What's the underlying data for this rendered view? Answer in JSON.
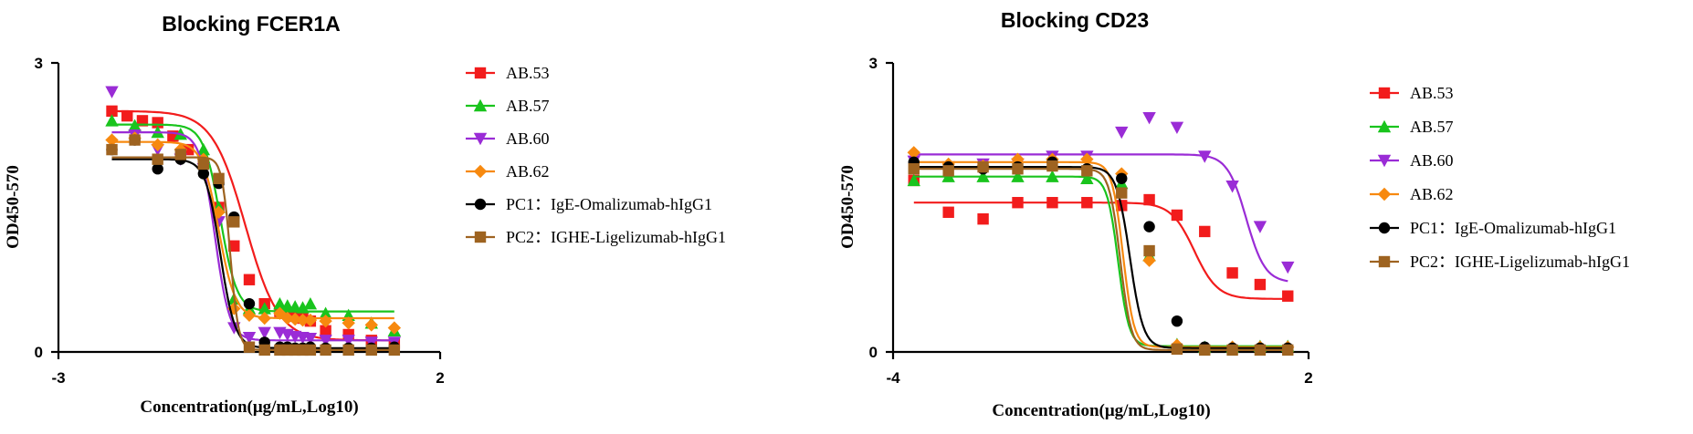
{
  "chart_data": [
    {
      "type": "scatter",
      "title": "Blocking FCER1A",
      "xlabel": "Concentration(μg/mL,Log10)",
      "ylabel": "OD450-570",
      "xlim": [
        -3,
        2
      ],
      "ylim": [
        0,
        3
      ],
      "xticks": [
        "-3",
        "2"
      ],
      "yticks": [
        "0",
        "3"
      ],
      "legend_position": "right",
      "series": [
        {
          "name": "AB.53",
          "color": "#f21c1c",
          "marker": "square",
          "x": [
            -2.3,
            -2.1,
            -1.9,
            -1.7,
            -1.5,
            -1.3,
            -1.1,
            -0.9,
            -0.7,
            -0.5,
            -0.3,
            -0.1,
            0.0,
            0.1,
            0.2,
            0.3,
            0.5,
            0.8,
            1.1,
            1.4
          ],
          "y": [
            2.5,
            2.45,
            2.4,
            2.38,
            2.24,
            2.1,
            1.95,
            1.5,
            1.1,
            0.75,
            0.5,
            0.42,
            0.4,
            0.37,
            0.35,
            0.32,
            0.22,
            0.18,
            0.12,
            0.09
          ],
          "fit": [
            2.5,
            0.12,
            -0.55,
            -2.0
          ]
        },
        {
          "name": "AB.57",
          "color": "#19c41d",
          "marker": "triangle",
          "x": [
            -2.3,
            -2.0,
            -1.7,
            -1.4,
            -1.1,
            -0.9,
            -0.7,
            -0.5,
            -0.3,
            -0.1,
            0.0,
            0.1,
            0.2,
            0.3,
            0.5,
            0.8,
            1.1,
            1.4
          ],
          "y": [
            2.4,
            2.35,
            2.28,
            2.26,
            2.1,
            1.5,
            0.55,
            0.45,
            0.45,
            0.5,
            0.48,
            0.47,
            0.46,
            0.5,
            0.4,
            0.38,
            0.3,
            0.22
          ],
          "fit": [
            2.36,
            0.42,
            -0.88,
            -4.0
          ]
        },
        {
          "name": "AB.60",
          "color": "#9a2cd6",
          "marker": "triangle-down",
          "x": [
            -2.3,
            -2.0,
            -1.7,
            -1.4,
            -1.1,
            -0.9,
            -0.7,
            -0.5,
            -0.3,
            -0.1,
            0.0,
            0.1,
            0.2,
            0.3,
            0.5,
            0.8,
            1.1,
            1.4
          ],
          "y": [
            2.7,
            2.25,
            2.1,
            2.0,
            1.9,
            1.35,
            0.25,
            0.15,
            0.2,
            0.2,
            0.18,
            0.16,
            0.15,
            0.14,
            0.12,
            0.12,
            0.1,
            0.1
          ],
          "fit": [
            2.28,
            0.12,
            -0.95,
            -4.5
          ]
        },
        {
          "name": "AB.62",
          "color": "#f7890f",
          "marker": "diamond",
          "x": [
            -2.3,
            -2.0,
            -1.7,
            -1.4,
            -1.1,
            -0.9,
            -0.7,
            -0.5,
            -0.3,
            -0.1,
            0.0,
            0.1,
            0.2,
            0.3,
            0.5,
            0.8,
            1.1,
            1.4
          ],
          "y": [
            2.2,
            2.22,
            2.15,
            2.1,
            2.0,
            1.45,
            0.45,
            0.38,
            0.35,
            0.4,
            0.35,
            0.34,
            0.33,
            0.33,
            0.32,
            0.3,
            0.28,
            0.25
          ],
          "fit": [
            2.18,
            0.35,
            -0.9,
            -4.0
          ]
        },
        {
          "name": "PC1：IgE-Omalizumab-hIgG1",
          "color": "#000000",
          "marker": "circle",
          "x": [
            -2.3,
            -2.0,
            -1.7,
            -1.4,
            -1.1,
            -0.9,
            -0.7,
            -0.5,
            -0.3,
            -0.1,
            0.0,
            0.1,
            0.2,
            0.3,
            0.5,
            0.8,
            1.1,
            1.4
          ],
          "y": [
            2.1,
            2.2,
            1.9,
            2.0,
            1.85,
            1.75,
            1.4,
            0.5,
            0.1,
            0.05,
            0.05,
            0.04,
            0.04,
            0.05,
            0.04,
            0.04,
            0.04,
            0.05
          ],
          "fit": [
            2.0,
            0.04,
            -0.88,
            -4.5
          ]
        },
        {
          "name": "PC2：IGHE-Ligelizumab-hIgG1",
          "color": "#9e6320",
          "marker": "square",
          "x": [
            -2.3,
            -2.0,
            -1.7,
            -1.4,
            -1.1,
            -0.9,
            -0.7,
            -0.5,
            -0.3,
            -0.1,
            0.0,
            0.1,
            0.2,
            0.3,
            0.5,
            0.8,
            1.1,
            1.4
          ],
          "y": [
            2.1,
            2.2,
            2.0,
            2.05,
            1.95,
            1.8,
            1.35,
            0.05,
            0.02,
            0.02,
            0.02,
            0.02,
            0.02,
            0.02,
            0.02,
            0.02,
            0.02,
            0.02
          ],
          "fit": [
            2.02,
            0.02,
            -0.75,
            -8.0
          ]
        }
      ]
    },
    {
      "type": "scatter",
      "title": "Blocking CD23",
      "xlabel": "Concentration(μg/mL,Log10)",
      "ylabel": "OD450-570",
      "xlim": [
        -4,
        2
      ],
      "ylim": [
        0,
        3
      ],
      "xticks": [
        "-4",
        "2"
      ],
      "yticks": [
        "0",
        "3"
      ],
      "legend_position": "right",
      "series": [
        {
          "name": "AB.53",
          "color": "#f21c1c",
          "marker": "square",
          "x": [
            -3.7,
            -3.2,
            -2.7,
            -2.2,
            -1.7,
            -1.2,
            -0.7,
            -0.3,
            0.1,
            0.5,
            0.9,
            1.3,
            1.7
          ],
          "y": [
            1.78,
            1.45,
            1.38,
            1.55,
            1.55,
            1.55,
            1.52,
            1.58,
            1.42,
            1.25,
            0.82,
            0.7,
            0.58
          ],
          "fit": [
            1.55,
            0.55,
            0.35,
            -2.6
          ]
        },
        {
          "name": "AB.57",
          "color": "#19c41d",
          "marker": "triangle",
          "x": [
            -3.7,
            -3.2,
            -2.7,
            -2.2,
            -1.7,
            -1.2,
            -0.7,
            -0.3,
            0.1,
            0.5,
            0.9,
            1.3,
            1.7
          ],
          "y": [
            1.78,
            1.82,
            1.82,
            1.82,
            1.82,
            1.8,
            1.75,
            1.0,
            0.08,
            0.05,
            0.05,
            0.06,
            0.06
          ],
          "fit": [
            1.82,
            0.06,
            -0.75,
            -5.5
          ]
        },
        {
          "name": "AB.60",
          "color": "#9a2cd6",
          "marker": "triangle-down",
          "x": [
            -3.7,
            -3.2,
            -2.7,
            -2.2,
            -1.7,
            -1.2,
            -0.7,
            -0.3,
            0.1,
            0.5,
            0.9,
            1.3,
            1.7
          ],
          "y": [
            1.98,
            1.92,
            1.95,
            1.95,
            2.03,
            2.03,
            2.28,
            2.43,
            2.33,
            2.03,
            1.72,
            1.3,
            0.88
          ],
          "fit": [
            2.05,
            0.72,
            1.1,
            -3.2
          ]
        },
        {
          "name": "AB.62",
          "color": "#f7890f",
          "marker": "diamond",
          "x": [
            -3.7,
            -3.2,
            -2.7,
            -2.2,
            -1.7,
            -1.2,
            -0.7,
            -0.3,
            0.1,
            0.5,
            0.9,
            1.3,
            1.7
          ],
          "y": [
            2.07,
            1.95,
            1.93,
            2.0,
            2.0,
            2.0,
            1.85,
            0.95,
            0.07,
            0.04,
            0.05,
            0.05,
            0.05
          ],
          "fit": [
            1.97,
            0.05,
            -0.68,
            -5.5
          ]
        },
        {
          "name": "PC1：IgE-Omalizumab-hIgG1",
          "color": "#000000",
          "marker": "circle",
          "x": [
            -3.7,
            -3.2,
            -2.7,
            -2.2,
            -1.7,
            -1.2,
            -0.7,
            -0.3,
            0.1,
            0.5,
            0.9,
            1.3,
            1.7
          ],
          "y": [
            1.97,
            1.92,
            1.9,
            1.92,
            1.97,
            1.9,
            1.8,
            1.3,
            0.32,
            0.05,
            0.04,
            0.04,
            0.04
          ],
          "fit": [
            1.92,
            0.04,
            -0.58,
            -4.5
          ]
        },
        {
          "name": "PC2：IGHE-Ligelizumab-hIgG1",
          "color": "#9e6320",
          "marker": "square",
          "x": [
            -3.7,
            -3.2,
            -2.7,
            -2.2,
            -1.7,
            -1.2,
            -0.7,
            -0.3,
            0.1,
            0.5,
            0.9,
            1.3,
            1.7
          ],
          "y": [
            1.9,
            1.88,
            1.92,
            1.9,
            1.93,
            1.88,
            1.65,
            1.05,
            0.03,
            0.02,
            0.02,
            0.02,
            0.02
          ],
          "fit": [
            1.9,
            0.02,
            -0.72,
            -5.5
          ]
        }
      ]
    }
  ]
}
